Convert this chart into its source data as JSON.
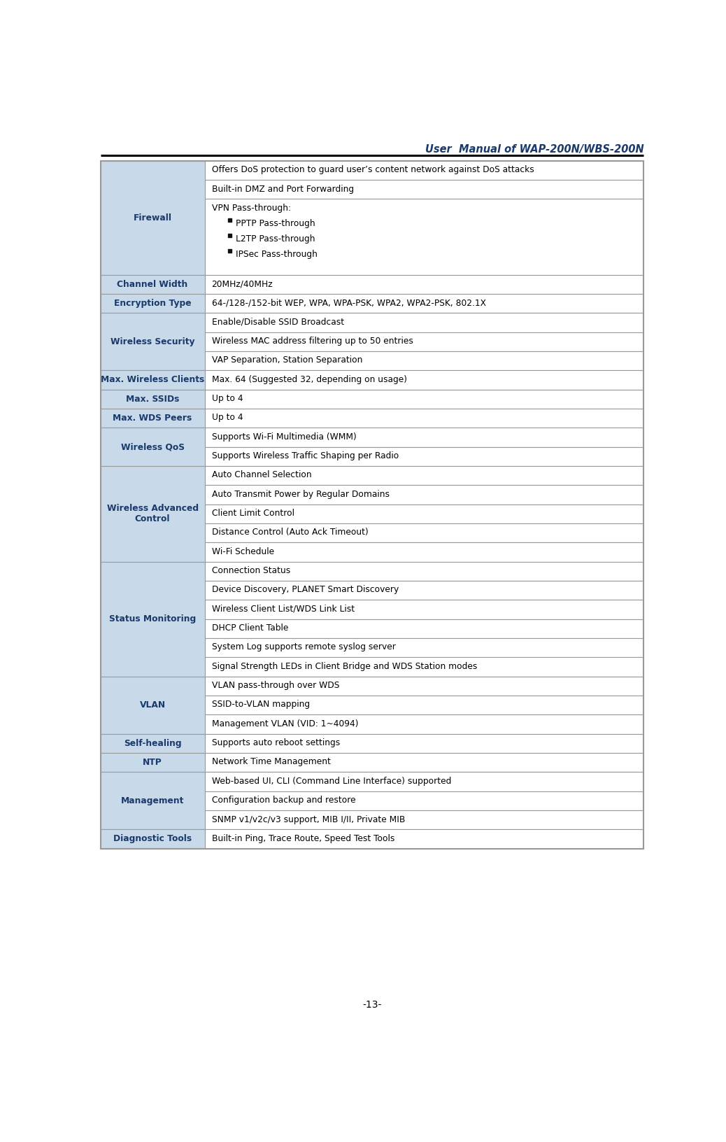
{
  "title": "User  Manual of WAP-200N/WBS-200N",
  "page_number": "-13-",
  "left_col_bg": "#c8daea",
  "right_col_bg": "#ffffff",
  "border_color": "#999999",
  "left_text_color": "#1a3a6b",
  "right_text_color": "#000000",
  "title_color": "#1a3a6b",
  "table_rows": [
    {
      "left_label": "Firewall",
      "sub_rows": [
        {
          "lines": [
            {
              "text": "Offers DoS protection to guard user’s content network against DoS attacks",
              "indent": 0,
              "bullet": false
            }
          ]
        },
        {
          "lines": [
            {
              "text": "Built-in DMZ and Port Forwarding",
              "indent": 0,
              "bullet": false
            }
          ]
        },
        {
          "lines": [
            {
              "text": "VPN Pass-through:",
              "indent": 0,
              "bullet": false
            },
            {
              "text": "PPTP Pass-through",
              "indent": 1,
              "bullet": true
            },
            {
              "text": "L2TP Pass-through",
              "indent": 1,
              "bullet": true
            },
            {
              "text": "IPSec Pass-through",
              "indent": 1,
              "bullet": true
            }
          ]
        }
      ]
    },
    {
      "left_label": "Channel Width",
      "sub_rows": [
        {
          "lines": [
            {
              "text": "20MHz/40MHz",
              "indent": 0,
              "bullet": false
            }
          ]
        }
      ]
    },
    {
      "left_label": "Encryption Type",
      "sub_rows": [
        {
          "lines": [
            {
              "text": "64-/128-/152-bit WEP, WPA, WPA-PSK, WPA2, WPA2-PSK, 802.1X",
              "indent": 0,
              "bullet": false
            }
          ]
        }
      ]
    },
    {
      "left_label": "Wireless Security",
      "sub_rows": [
        {
          "lines": [
            {
              "text": "Enable/Disable SSID Broadcast",
              "indent": 0,
              "bullet": false
            }
          ]
        },
        {
          "lines": [
            {
              "text": "Wireless MAC address filtering up to 50 entries",
              "indent": 0,
              "bullet": false
            }
          ]
        },
        {
          "lines": [
            {
              "text": "VAP Separation, Station Separation",
              "indent": 0,
              "bullet": false
            }
          ]
        }
      ]
    },
    {
      "left_label": "Max. Wireless Clients",
      "sub_rows": [
        {
          "lines": [
            {
              "text": "Max. 64 (Suggested 32, depending on usage)",
              "indent": 0,
              "bullet": false
            }
          ]
        }
      ]
    },
    {
      "left_label": "Max. SSIDs",
      "sub_rows": [
        {
          "lines": [
            {
              "text": "Up to 4",
              "indent": 0,
              "bullet": false
            }
          ]
        }
      ]
    },
    {
      "left_label": "Max. WDS Peers",
      "sub_rows": [
        {
          "lines": [
            {
              "text": "Up to 4",
              "indent": 0,
              "bullet": false
            }
          ]
        }
      ]
    },
    {
      "left_label": "Wireless QoS",
      "sub_rows": [
        {
          "lines": [
            {
              "text": "Supports Wi-Fi Multimedia (WMM)",
              "indent": 0,
              "bullet": false
            }
          ]
        },
        {
          "lines": [
            {
              "text": "Supports Wireless Traffic Shaping per Radio",
              "indent": 0,
              "bullet": false
            }
          ]
        }
      ]
    },
    {
      "left_label": "Wireless Advanced\nControl",
      "sub_rows": [
        {
          "lines": [
            {
              "text": "Auto Channel Selection",
              "indent": 0,
              "bullet": false
            }
          ]
        },
        {
          "lines": [
            {
              "text": "Auto Transmit Power by Regular Domains",
              "indent": 0,
              "bullet": false
            }
          ]
        },
        {
          "lines": [
            {
              "text": "Client Limit Control",
              "indent": 0,
              "bullet": false
            }
          ]
        },
        {
          "lines": [
            {
              "text": "Distance Control (Auto Ack Timeout)",
              "indent": 0,
              "bullet": false
            }
          ]
        },
        {
          "lines": [
            {
              "text": "Wi-Fi Schedule",
              "indent": 0,
              "bullet": false
            }
          ]
        }
      ]
    },
    {
      "left_label": "Status Monitoring",
      "sub_rows": [
        {
          "lines": [
            {
              "text": "Connection Status",
              "indent": 0,
              "bullet": false
            }
          ]
        },
        {
          "lines": [
            {
              "text": "Device Discovery, PLANET Smart Discovery",
              "indent": 0,
              "bullet": false
            }
          ]
        },
        {
          "lines": [
            {
              "text": "Wireless Client List/WDS Link List",
              "indent": 0,
              "bullet": false
            }
          ]
        },
        {
          "lines": [
            {
              "text": "DHCP Client Table",
              "indent": 0,
              "bullet": false
            }
          ]
        },
        {
          "lines": [
            {
              "text": "System Log supports remote syslog server",
              "indent": 0,
              "bullet": false
            }
          ]
        },
        {
          "lines": [
            {
              "text": "Signal Strength LEDs in Client Bridge and WDS Station modes",
              "indent": 0,
              "bullet": false
            }
          ]
        }
      ]
    },
    {
      "left_label": "VLAN",
      "sub_rows": [
        {
          "lines": [
            {
              "text": "VLAN pass-through over WDS",
              "indent": 0,
              "bullet": false
            }
          ]
        },
        {
          "lines": [
            {
              "text": "SSID-to-VLAN mapping",
              "indent": 0,
              "bullet": false
            }
          ]
        },
        {
          "lines": [
            {
              "text": "Management VLAN (VID: 1~4094)",
              "indent": 0,
              "bullet": false
            }
          ]
        }
      ]
    },
    {
      "left_label": "Self-healing",
      "sub_rows": [
        {
          "lines": [
            {
              "text": "Supports auto reboot settings",
              "indent": 0,
              "bullet": false
            }
          ]
        }
      ]
    },
    {
      "left_label": "NTP",
      "sub_rows": [
        {
          "lines": [
            {
              "text": "Network Time Management",
              "indent": 0,
              "bullet": false
            }
          ]
        }
      ]
    },
    {
      "left_label": "Management",
      "sub_rows": [
        {
          "lines": [
            {
              "text": "Web-based UI, CLI (Command Line Interface) supported",
              "indent": 0,
              "bullet": false
            }
          ]
        },
        {
          "lines": [
            {
              "text": "Configuration backup and restore",
              "indent": 0,
              "bullet": false
            }
          ]
        },
        {
          "lines": [
            {
              "text": "SNMP v1/v2c/v3 support, MIB I/II, Private MIB",
              "indent": 0,
              "bullet": false
            }
          ]
        }
      ]
    },
    {
      "left_label": "Diagnostic Tools",
      "sub_rows": [
        {
          "lines": [
            {
              "text": "Built-in Ping, Trace Route, Speed Test Tools",
              "indent": 0,
              "bullet": false
            }
          ]
        }
      ]
    }
  ]
}
